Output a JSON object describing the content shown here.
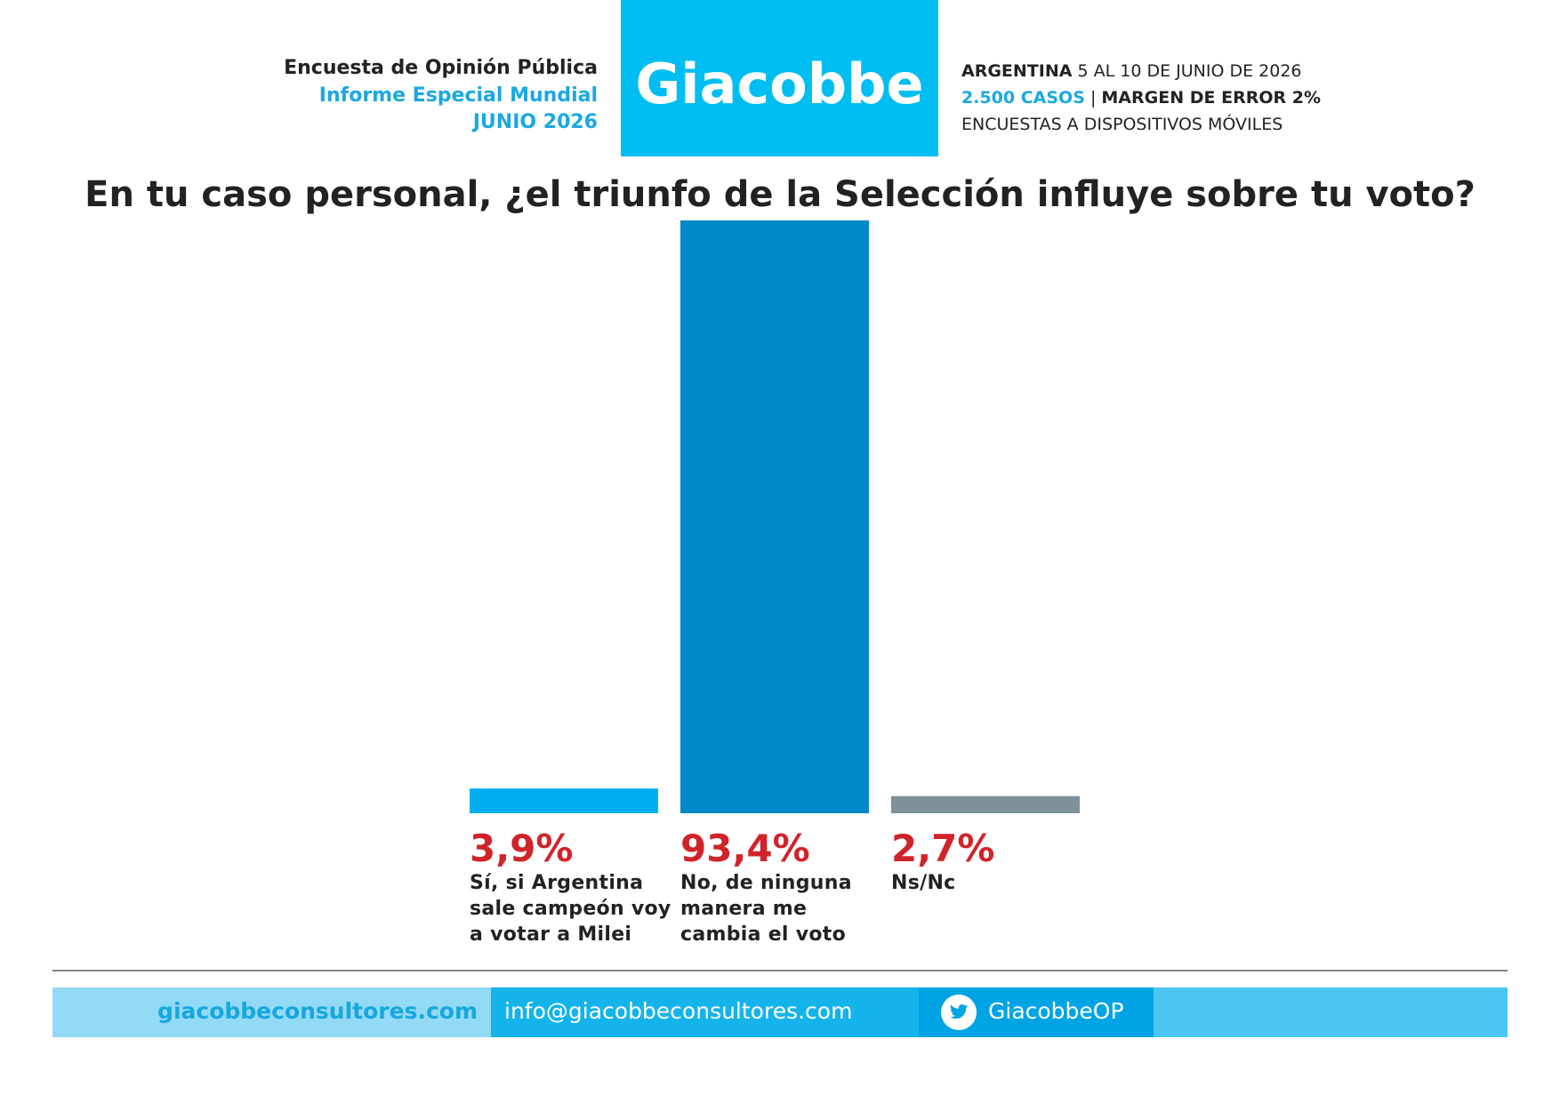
{
  "header": {
    "left": [
      "Encuesta de Opinión Pública",
      "Informe Especial Mundial",
      "JUNIO 2026"
    ],
    "logo": "Giacobbe",
    "right": {
      "country": "ARGENTINA",
      "dates": "5 AL 10 DE JUNIO DE 2026",
      "cases": "2.500 CASOS",
      "separator": "|",
      "margin": "MARGEN DE ERROR 2%",
      "method": "ENCUESTAS A DISPOSITIVOS MÓVILES"
    }
  },
  "chart_data": {
    "type": "bar",
    "title": "En tu caso personal, ¿el triunfo de la Selección influye sobre tu voto?",
    "categories": [
      "Sí, si Argentina sale campeón voy a votar a Milei",
      "No, de ninguna manera me cambia el voto",
      "Ns/Nc"
    ],
    "values": [
      3.9,
      93.4,
      2.7
    ],
    "value_labels": [
      "3,9%",
      "93,4%",
      "2,7%"
    ],
    "colors": [
      "#00aeef",
      "#0089c9",
      "#7f9099"
    ]
  },
  "footer": {
    "website": "giacobbeconsultores.com",
    "email": "info@giacobbeconsultores.com",
    "twitter": "GiacobbeOP"
  }
}
